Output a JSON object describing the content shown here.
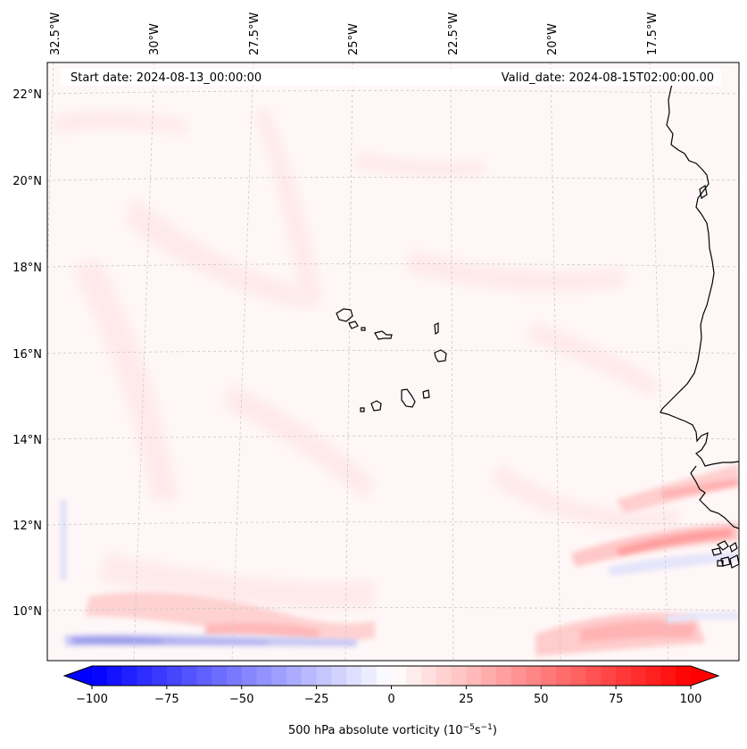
{
  "map": {
    "start_date": "Start date: 2024-08-13_00:00:00",
    "valid_date": "Valid_date: 2024-08-15T02:00:00.00",
    "lon_labels": [
      "32.5°W",
      "30°W",
      "27.5°W",
      "25°W",
      "22.5°W",
      "20°W",
      "17.5°W"
    ],
    "lat_labels": [
      "22°N",
      "20°N",
      "18°N",
      "16°N",
      "14°N",
      "12°N",
      "10°N"
    ]
  },
  "colorbar": {
    "ticks": [
      "−100",
      "−75",
      "−50",
      "−25",
      "0",
      "25",
      "50",
      "75",
      "100"
    ],
    "label_prefix": "500 hPa absolute vorticity (10",
    "label_exp1": "−5",
    "label_mid": "s",
    "label_exp2": "−1",
    "label_suffix": ")",
    "vmin": -100,
    "vmax": 100,
    "min_color": "#0000ff",
    "mid_color": "#ffffff",
    "max_color": "#ff0000"
  }
}
